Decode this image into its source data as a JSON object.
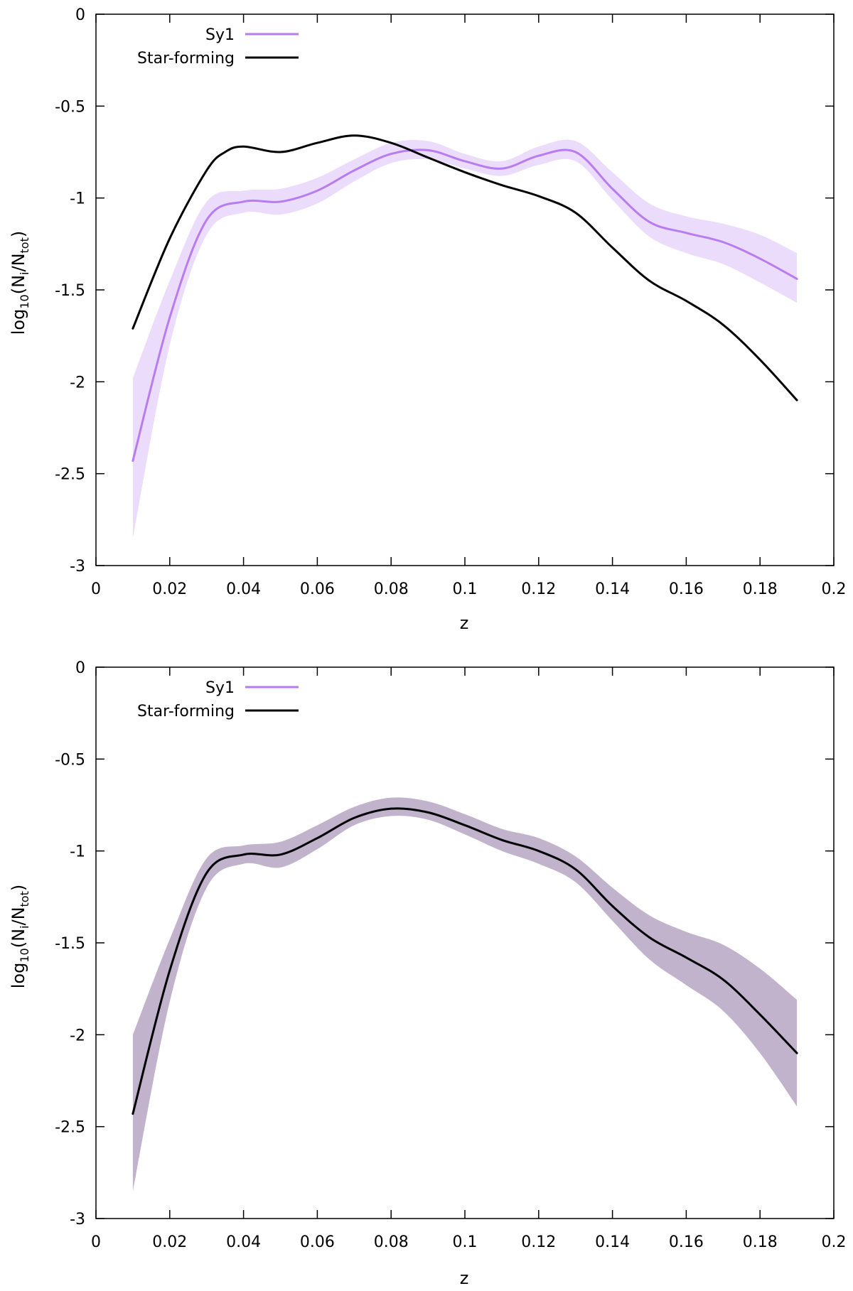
{
  "chart_data": [
    {
      "type": "line",
      "panel": "top",
      "xlabel": "z",
      "ylabel_parts": {
        "base": "log",
        "base_sub": "10",
        "open": "(N",
        "num_sub": "i",
        "slash": "/N",
        "den_sub": "tot",
        "close": ")"
      },
      "xlim": [
        0,
        0.2
      ],
      "ylim": [
        -3,
        0
      ],
      "xticks": [
        "0",
        "0.02",
        "0.04",
        "0.06",
        "0.08",
        "0.1",
        "0.12",
        "0.14",
        "0.16",
        "0.18",
        "0.2"
      ],
      "yticks": [
        "0",
        "-0.5",
        "-1",
        "-1.5",
        "-2",
        "-2.5",
        "-3"
      ],
      "legend": {
        "position": "top-left",
        "entries": [
          "Sy1",
          "Star-forming"
        ]
      },
      "series": [
        {
          "name": "Sy1",
          "color": "#b77cf0",
          "band_color": "#ecdcfb",
          "x": [
            0.01,
            0.02,
            0.03,
            0.04,
            0.05,
            0.06,
            0.07,
            0.08,
            0.09,
            0.1,
            0.11,
            0.12,
            0.13,
            0.14,
            0.15,
            0.16,
            0.17,
            0.18,
            0.19
          ],
          "y": [
            -2.43,
            -1.65,
            -1.12,
            -1.02,
            -1.02,
            -0.96,
            -0.85,
            -0.76,
            -0.74,
            -0.8,
            -0.84,
            -0.77,
            -0.75,
            -0.95,
            -1.13,
            -1.19,
            -1.24,
            -1.33,
            -1.44
          ],
          "lower": [
            -2.85,
            -1.8,
            -1.2,
            -1.08,
            -1.09,
            -1.03,
            -0.91,
            -0.81,
            -0.79,
            -0.84,
            -0.88,
            -0.82,
            -0.8,
            -1.01,
            -1.21,
            -1.3,
            -1.36,
            -1.46,
            -1.57
          ],
          "upper": [
            -1.98,
            -1.45,
            -1.02,
            -0.96,
            -0.95,
            -0.89,
            -0.79,
            -0.7,
            -0.69,
            -0.76,
            -0.8,
            -0.72,
            -0.69,
            -0.86,
            -1.03,
            -1.1,
            -1.14,
            -1.2,
            -1.3
          ]
        },
        {
          "name": "Star-forming",
          "color": "#000000",
          "x": [
            0.01,
            0.02,
            0.03,
            0.035,
            0.04,
            0.05,
            0.06,
            0.07,
            0.08,
            0.09,
            0.1,
            0.11,
            0.12,
            0.13,
            0.14,
            0.15,
            0.16,
            0.17,
            0.18,
            0.19
          ],
          "y": [
            -1.71,
            -1.22,
            -0.85,
            -0.75,
            -0.72,
            -0.75,
            -0.7,
            -0.66,
            -0.7,
            -0.78,
            -0.86,
            -0.93,
            -0.99,
            -1.08,
            -1.27,
            -1.45,
            -1.56,
            -1.69,
            -1.88,
            -2.1
          ]
        }
      ]
    },
    {
      "type": "line",
      "panel": "bottom",
      "xlabel": "z",
      "ylabel_parts": {
        "base": "log",
        "base_sub": "10",
        "open": "(N",
        "num_sub": "i",
        "slash": "/N",
        "den_sub": "tot",
        "close": ")"
      },
      "xlim": [
        0,
        0.2
      ],
      "ylim": [
        -3,
        0
      ],
      "xticks": [
        "0",
        "0.02",
        "0.04",
        "0.06",
        "0.08",
        "0.1",
        "0.12",
        "0.14",
        "0.16",
        "0.18",
        "0.2"
      ],
      "yticks": [
        "0",
        "-0.5",
        "-1",
        "-1.5",
        "-2",
        "-2.5",
        "-3"
      ],
      "legend": {
        "position": "top-left",
        "entries": [
          "Sy1",
          "Star-forming"
        ]
      },
      "series": [
        {
          "name": "Sy1",
          "color": "#b77cf0",
          "band_color": "#c2b3cd",
          "x": [
            0.01,
            0.02,
            0.03,
            0.04,
            0.05,
            0.06,
            0.07,
            0.08,
            0.09,
            0.1,
            0.11,
            0.12,
            0.13,
            0.14,
            0.15,
            0.16,
            0.17,
            0.18,
            0.19
          ],
          "y": [
            -2.43,
            -1.65,
            -1.12,
            -1.02,
            -1.02,
            -0.93,
            -0.82,
            -0.77,
            -0.79,
            -0.86,
            -0.94,
            -1.0,
            -1.1,
            -1.3,
            -1.47,
            -1.58,
            -1.7,
            -1.89,
            -2.1
          ],
          "lower": [
            -2.85,
            -1.82,
            -1.2,
            -1.07,
            -1.09,
            -0.99,
            -0.86,
            -0.81,
            -0.83,
            -0.91,
            -1.0,
            -1.07,
            -1.17,
            -1.38,
            -1.59,
            -1.73,
            -1.87,
            -2.1,
            -2.39
          ],
          "upper": [
            -2.0,
            -1.48,
            -1.04,
            -0.97,
            -0.95,
            -0.86,
            -0.76,
            -0.71,
            -0.73,
            -0.8,
            -0.88,
            -0.93,
            -1.03,
            -1.2,
            -1.35,
            -1.44,
            -1.51,
            -1.64,
            -1.81
          ]
        },
        {
          "name": "Star-forming",
          "color": "#000000",
          "x": [
            0.01,
            0.02,
            0.03,
            0.04,
            0.05,
            0.06,
            0.07,
            0.08,
            0.09,
            0.1,
            0.11,
            0.12,
            0.13,
            0.14,
            0.15,
            0.16,
            0.17,
            0.18,
            0.19
          ],
          "y": [
            -2.43,
            -1.65,
            -1.12,
            -1.02,
            -1.02,
            -0.93,
            -0.82,
            -0.77,
            -0.79,
            -0.86,
            -0.94,
            -1.0,
            -1.1,
            -1.3,
            -1.47,
            -1.58,
            -1.7,
            -1.89,
            -2.1
          ]
        }
      ]
    }
  ]
}
